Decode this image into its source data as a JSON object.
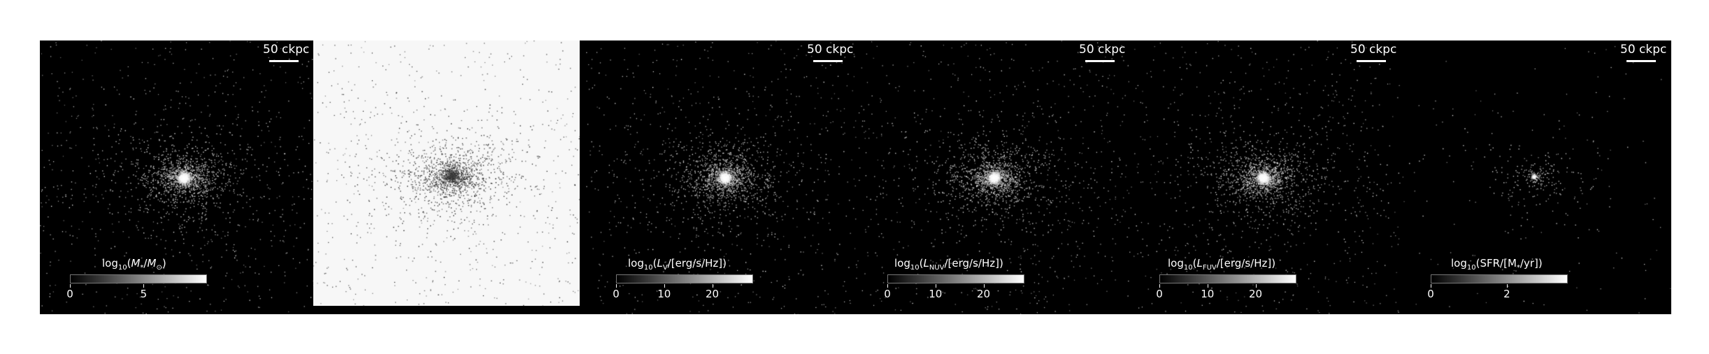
{
  "scalebar_label": "50 ckpc",
  "panels": [
    {
      "id": "stellar-mass",
      "colorbar_title_html": "log<sub>10</sub>(<i>M</i><sub>*</sub>/<i>M</i><sub>⊙</sub>)",
      "ticks": [
        {
          "label": "0",
          "value": 0
        },
        {
          "label": "5",
          "value": 5
        }
      ],
      "vmax": 9.3,
      "core": 1.0,
      "density": 1.0
    },
    {
      "id": "inverted",
      "colorbar_title_html": "",
      "ticks": []
    },
    {
      "id": "lv",
      "colorbar_title_html": "log<sub>10</sub>(<i>L</i><sub>V</sub>/[erg/s/Hz])",
      "ticks": [
        {
          "label": "0",
          "value": 0
        },
        {
          "label": "10",
          "value": 10
        },
        {
          "label": "20",
          "value": 20
        }
      ],
      "vmax": 28.5,
      "core": 1.0,
      "density": 1.0
    },
    {
      "id": "lnuv",
      "colorbar_title_html": "log<sub>10</sub>(<i>L</i><sub>NUV</sub>/[erg/s/Hz])",
      "ticks": [
        {
          "label": "0",
          "value": 0
        },
        {
          "label": "10",
          "value": 10
        },
        {
          "label": "20",
          "value": 20
        }
      ],
      "vmax": 28.5,
      "core": 1.0,
      "density": 1.0
    },
    {
      "id": "lfuv",
      "colorbar_title_html": "log<sub>10</sub>(<i>L</i><sub>FUV</sub>/[erg/s/Hz])",
      "ticks": [
        {
          "label": "0",
          "value": 0
        },
        {
          "label": "10",
          "value": 10
        },
        {
          "label": "20",
          "value": 20
        }
      ],
      "vmax": 28.5,
      "core": 1.0,
      "density": 1.0
    },
    {
      "id": "sfr",
      "colorbar_title_html": "log<sub>10</sub>(SFR/[M<sub>*</sub>/yr])",
      "ticks": [
        {
          "label": "0",
          "value": 0
        },
        {
          "label": "2",
          "value": 2
        }
      ],
      "vmax": 3.6,
      "core": 0.4,
      "density": 0.18
    }
  ]
}
